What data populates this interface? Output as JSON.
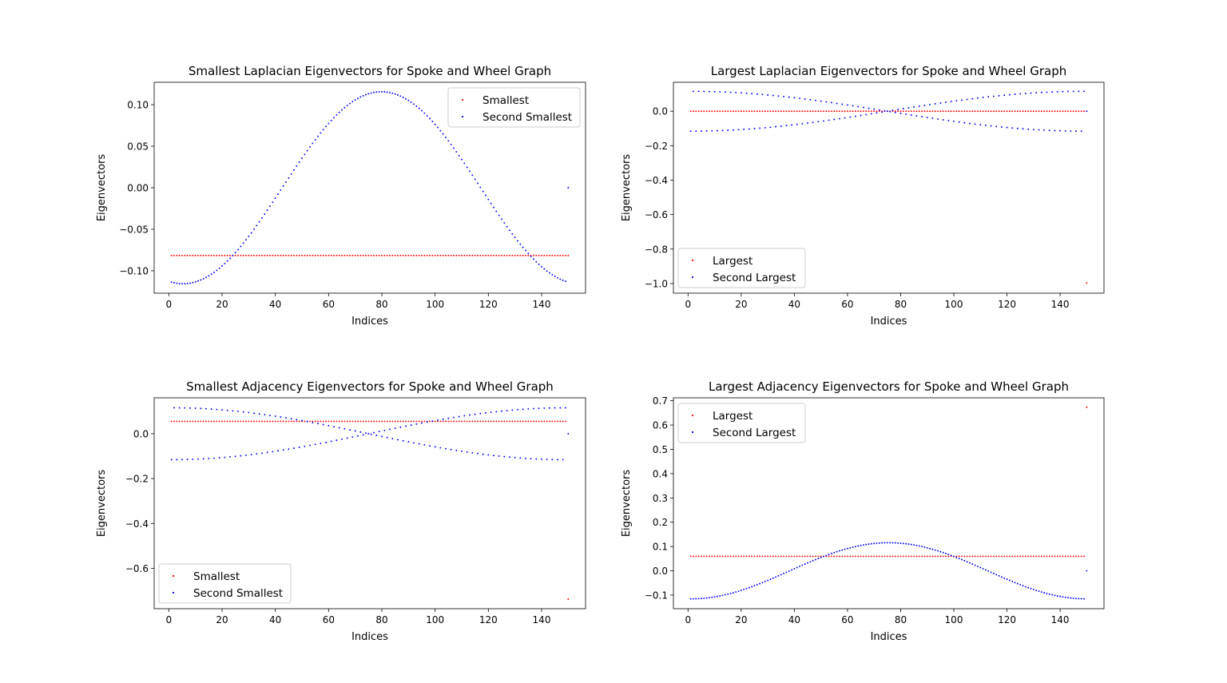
{
  "chart_data": [
    {
      "type": "scatter",
      "title": "Smallest Laplacian Eigenvectors for Spoke and Wheel Graph",
      "xlabel": "Indices",
      "ylabel": "Eigenvectors",
      "xlim": [
        -5.5,
        156.5
      ],
      "ylim": [
        -0.127,
        0.127
      ],
      "xticks": [
        0,
        20,
        40,
        60,
        80,
        100,
        120,
        140
      ],
      "xtick_labels": [
        "0",
        "20",
        "40",
        "60",
        "80",
        "100",
        "120",
        "140"
      ],
      "yticks": [
        -0.1,
        -0.05,
        0.0,
        0.05,
        0.1
      ],
      "ytick_labels": [
        "−0.10",
        "−0.05",
        "0.00",
        "0.05",
        "0.10"
      ],
      "legend_position": "upper right",
      "series": [
        {
          "name": "Smallest",
          "color": "#ff0000",
          "rule": {
            "kind": "constant",
            "n": 150,
            "value": -0.0816
          }
        },
        {
          "name": "Second Smallest",
          "color": "#0000ff",
          "rule": {
            "kind": "cosine",
            "n": 149,
            "amplitude": 0.1156,
            "phase_deg": 169.5,
            "hub_value": 0.0
          }
        }
      ]
    },
    {
      "type": "scatter",
      "title": "Largest Laplacian Eigenvectors for Spoke and Wheel Graph",
      "xlabel": "Indices",
      "ylabel": "Eigenvectors",
      "xlim": [
        -5.5,
        156.5
      ],
      "ylim": [
        -1.056,
        0.168
      ],
      "xticks": [
        0,
        20,
        40,
        60,
        80,
        100,
        120,
        140
      ],
      "xtick_labels": [
        "0",
        "20",
        "40",
        "60",
        "80",
        "100",
        "120",
        "140"
      ],
      "yticks": [
        -1.0,
        -0.8,
        -0.6,
        -0.4,
        -0.2,
        0.0
      ],
      "ytick_labels": [
        "−1.0",
        "−0.8",
        "−0.6",
        "−0.4",
        "−0.2",
        "0.0"
      ],
      "legend_position": "lower left",
      "series": [
        {
          "name": "Largest",
          "color": "#ff0000",
          "rule": {
            "kind": "constant",
            "n": 150,
            "value": 0.0,
            "hub_value": -0.9966
          }
        },
        {
          "name": "Second Largest",
          "color": "#0000ff",
          "rule": {
            "kind": "alternating-envelope",
            "n": 149,
            "amplitude": 0.1156,
            "hub_value": 0.0
          }
        }
      ]
    },
    {
      "type": "scatter",
      "title": "Smallest Adjacency Eigenvectors for Spoke and Wheel Graph",
      "xlabel": "Indices",
      "ylabel": "Eigenvectors",
      "xlim": [
        -5.5,
        156.5
      ],
      "ylim": [
        -0.78,
        0.16
      ],
      "xticks": [
        0,
        20,
        40,
        60,
        80,
        100,
        120,
        140
      ],
      "xtick_labels": [
        "0",
        "20",
        "40",
        "60",
        "80",
        "100",
        "120",
        "140"
      ],
      "yticks": [
        -0.6,
        -0.4,
        -0.2,
        0.0
      ],
      "ytick_labels": [
        "−0.6",
        "−0.4",
        "−0.2",
        "0.0"
      ],
      "legend_position": "lower left",
      "series": [
        {
          "name": "Smallest",
          "color": "#ff0000",
          "rule": {
            "kind": "constant",
            "n": 150,
            "value": 0.0552,
            "hub_value": -0.7373
          }
        },
        {
          "name": "Second Smallest",
          "color": "#0000ff",
          "rule": {
            "kind": "alternating-envelope",
            "n": 149,
            "amplitude": 0.1156,
            "hub_value": 0.0
          }
        }
      ]
    },
    {
      "type": "scatter",
      "title": "Largest Adjacency Eigenvectors for Spoke and Wheel Graph",
      "xlabel": "Indices",
      "ylabel": "Eigenvectors",
      "xlim": [
        -5.5,
        156.5
      ],
      "ylim": [
        -0.156,
        0.712
      ],
      "xticks": [
        0,
        20,
        40,
        60,
        80,
        100,
        120,
        140
      ],
      "xtick_labels": [
        "0",
        "20",
        "40",
        "60",
        "80",
        "100",
        "120",
        "140"
      ],
      "yticks": [
        -0.1,
        0.0,
        0.1,
        0.2,
        0.3,
        0.4,
        0.5,
        0.6,
        0.7
      ],
      "ytick_labels": [
        "−0.1",
        "0.0",
        "0.1",
        "0.2",
        "0.3",
        "0.4",
        "0.5",
        "0.6",
        "0.7"
      ],
      "legend_position": "upper left",
      "series": [
        {
          "name": "Largest",
          "color": "#ff0000",
          "rule": {
            "kind": "constant",
            "n": 150,
            "value": 0.0597,
            "hub_value": 0.6734
          }
        },
        {
          "name": "Second Largest",
          "color": "#0000ff",
          "rule": {
            "kind": "cosine",
            "n": 149,
            "amplitude": 0.1156,
            "phase_deg": 180.0,
            "hub_value": 0.0
          }
        }
      ]
    }
  ]
}
